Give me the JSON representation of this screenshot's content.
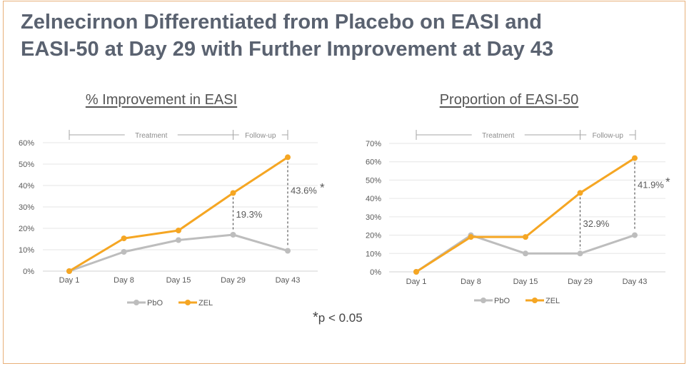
{
  "slide": {
    "title_line1": "Zelnecirnon Differentiated from Placebo on EASI and",
    "title_line2": "EASI-50 at Day 29 with Further Improvement at Day 43",
    "footnote_star": "*",
    "footnote_text": "p < 0.05"
  },
  "colors": {
    "pbo": "#bdbdbd",
    "zel": "#f5a623",
    "grid": "#e6e6e6",
    "text": "#595959",
    "border": "#e8b07a"
  },
  "chart_data": [
    {
      "type": "line",
      "title": "% Improvement in EASI",
      "categories": [
        "Day 1",
        "Day 8",
        "Day 15",
        "Day 29",
        "Day 43"
      ],
      "yticks": [
        "0%",
        "10%",
        "20%",
        "30%",
        "40%",
        "50%",
        "60%"
      ],
      "ylim": [
        0,
        60
      ],
      "series": [
        {
          "name": "PbO",
          "values": [
            0,
            9,
            14.5,
            17,
            9.5
          ]
        },
        {
          "name": "ZEL",
          "values": [
            0,
            15.3,
            19,
            36.5,
            53.2
          ]
        }
      ],
      "periods": [
        {
          "label": "Treatment",
          "from": "Day 1",
          "to": "Day 29"
        },
        {
          "label": "Follow-up",
          "from": "Day 29",
          "to": "end"
        }
      ],
      "annotations": [
        {
          "category": "Day 29",
          "label": "19.3%",
          "star": ""
        },
        {
          "category": "Day 43",
          "label": "43.6%",
          "star": "*"
        }
      ],
      "legend": [
        "PbO",
        "ZEL"
      ]
    },
    {
      "type": "line",
      "title": "Proportion of EASI-50",
      "categories": [
        "Day 1",
        "Day 8",
        "Day 15",
        "Day 29",
        "Day 43"
      ],
      "yticks": [
        "0%",
        "10%",
        "20%",
        "30%",
        "40%",
        "50%",
        "60%",
        "70%"
      ],
      "ylim": [
        0,
        70
      ],
      "series": [
        {
          "name": "PbO",
          "values": [
            0,
            20,
            10,
            10,
            20
          ]
        },
        {
          "name": "ZEL",
          "values": [
            0,
            19,
            19,
            43,
            62
          ]
        }
      ],
      "periods": [
        {
          "label": "Treatment",
          "from": "Day 1",
          "to": "Day 29"
        },
        {
          "label": "Follow-up",
          "from": "Day 29",
          "to": "end"
        }
      ],
      "annotations": [
        {
          "category": "Day 29",
          "label": "32.9%",
          "star": ""
        },
        {
          "category": "Day 43",
          "label": "41.9%",
          "star": "*"
        }
      ],
      "legend": [
        "PbO",
        "ZEL"
      ]
    }
  ]
}
